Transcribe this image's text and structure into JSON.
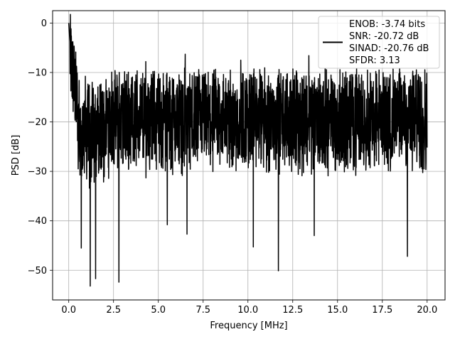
{
  "chart_data": {
    "type": "line",
    "title": "",
    "xlabel": "Frequency [MHz]",
    "ylabel": "PSD [dB]",
    "xlim": [
      -0.9,
      21.0
    ],
    "ylim": [
      -56,
      2.5
    ],
    "xticks": [
      0.0,
      2.5,
      5.0,
      7.5,
      10.0,
      12.5,
      15.0,
      17.5,
      20.0
    ],
    "xtick_labels": [
      "0.0",
      "2.5",
      "5.0",
      "7.5",
      "10.0",
      "12.5",
      "15.0",
      "17.5",
      "20.0"
    ],
    "yticks": [
      0,
      -10,
      -20,
      -30,
      -40,
      -50
    ],
    "ytick_labels": [
      "0",
      "−10",
      "−20",
      "−30",
      "−40",
      "−50"
    ],
    "grid": true,
    "legend": {
      "placement": "upper right",
      "lines": [
        "ENOB: -3.74 bits",
        "SNR: -20.72 dB",
        "SINAD: -20.76 dB",
        "SFDR: 3.13"
      ]
    },
    "series": [
      {
        "color": "#000000",
        "peak": {
          "x": 0.0,
          "y": 0.0
        },
        "floor_median_db": -19.5,
        "typical_max_db": -10.5,
        "x_range": [
          0.0,
          20.0
        ],
        "low_spikes": [
          {
            "x": 0.7,
            "y": -45.5
          },
          {
            "x": 1.2,
            "y": -53.2
          },
          {
            "x": 1.5,
            "y": -51.7
          },
          {
            "x": 2.8,
            "y": -52.4
          },
          {
            "x": 5.5,
            "y": -40.8
          },
          {
            "x": 6.6,
            "y": -42.7
          },
          {
            "x": 10.3,
            "y": -45.3
          },
          {
            "x": 11.7,
            "y": -50.1
          },
          {
            "x": 13.7,
            "y": -43.0
          },
          {
            "x": 18.9,
            "y": -47.2
          }
        ],
        "high_spikes": [
          {
            "x": 6.5,
            "y": -6.3
          },
          {
            "x": 13.4,
            "y": -6.6
          },
          {
            "x": 4.3,
            "y": -7.8
          },
          {
            "x": 9.6,
            "y": -7.5
          }
        ]
      }
    ]
  }
}
